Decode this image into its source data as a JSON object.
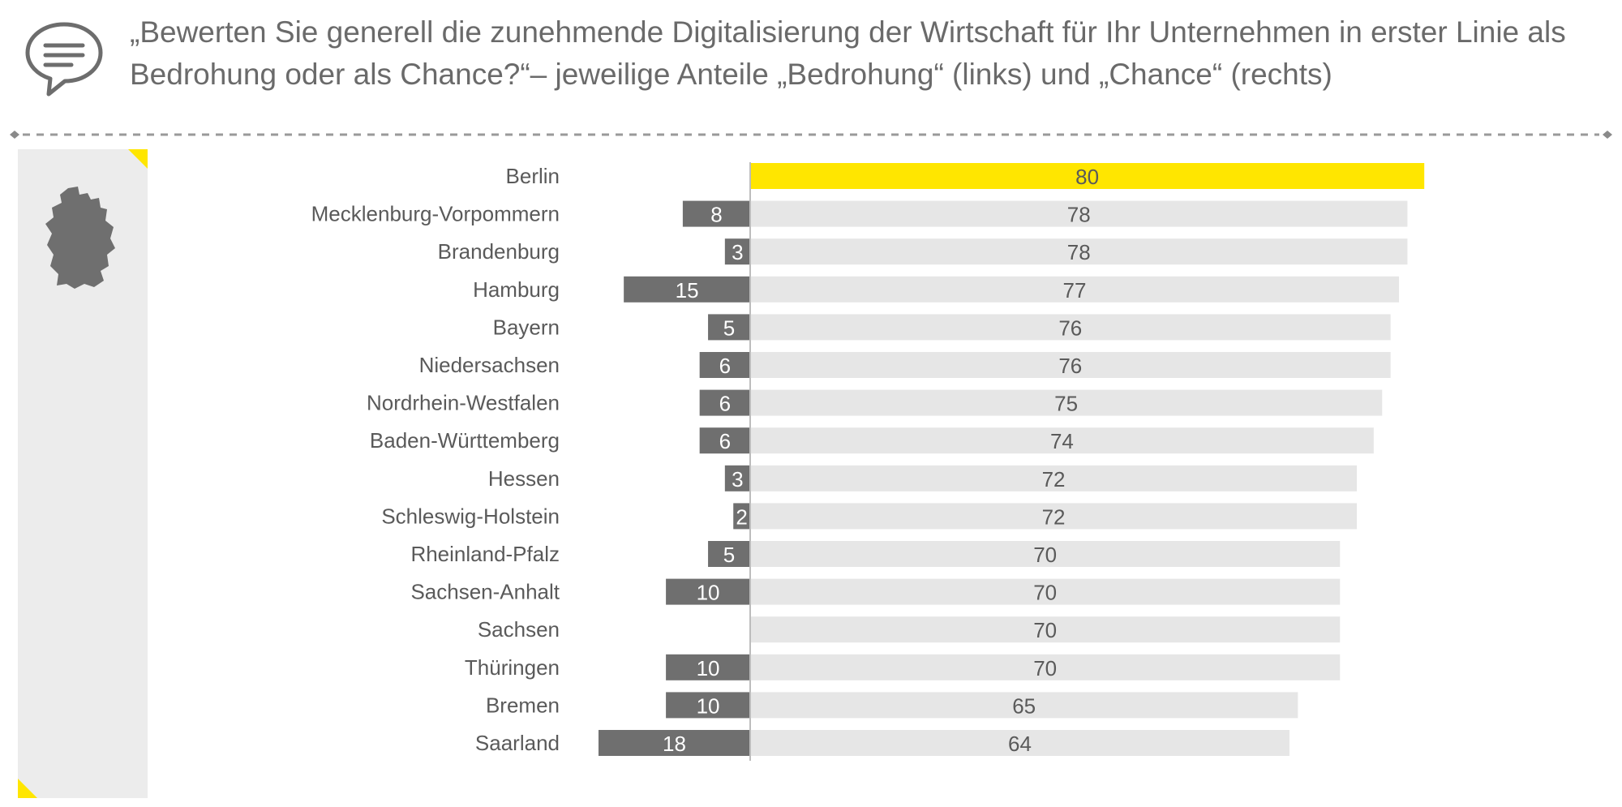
{
  "header": {
    "title": "„Bewerten Sie generell die zunehmende Digitalisierung der Wirtschaft für Ihr Unternehmen in erster Linie als Bedrohung oder als Chance?“– jeweilige Anteile „Bedrohung“ (links) und „Chance“ (rechts)",
    "icon": "speech-bubble-icon"
  },
  "side_panel": {
    "icon": "germany-map-icon"
  },
  "colors": {
    "threat": "#6f6f6f",
    "chance": "#e6e6e6",
    "highlight": "#ffe600",
    "text": "#5a5a5a"
  },
  "chart_data": {
    "type": "bar",
    "orientation": "horizontal-diverging",
    "categories": [
      "Berlin",
      "Mecklenburg-Vorpommern",
      "Brandenburg",
      "Hamburg",
      "Bayern",
      "Niedersachsen",
      "Nordrhein-Westfalen",
      "Baden-Württemberg",
      "Hessen",
      "Schleswig-Holstein",
      "Rheinland-Pfalz",
      "Sachsen-Anhalt",
      "Sachsen",
      "Thüringen",
      "Bremen",
      "Saarland"
    ],
    "series": [
      {
        "name": "Bedrohung",
        "values": [
          0,
          8,
          3,
          15,
          5,
          6,
          6,
          6,
          3,
          2,
          5,
          10,
          0,
          10,
          10,
          18
        ]
      },
      {
        "name": "Chance",
        "values": [
          80,
          78,
          78,
          77,
          76,
          76,
          75,
          74,
          72,
          72,
          70,
          70,
          70,
          70,
          65,
          64
        ]
      }
    ],
    "highlight_category": "Berlin",
    "title": "",
    "xlabel": "",
    "ylabel": "",
    "xlim": [
      -20,
      100
    ],
    "grid": false,
    "legend": "none"
  }
}
